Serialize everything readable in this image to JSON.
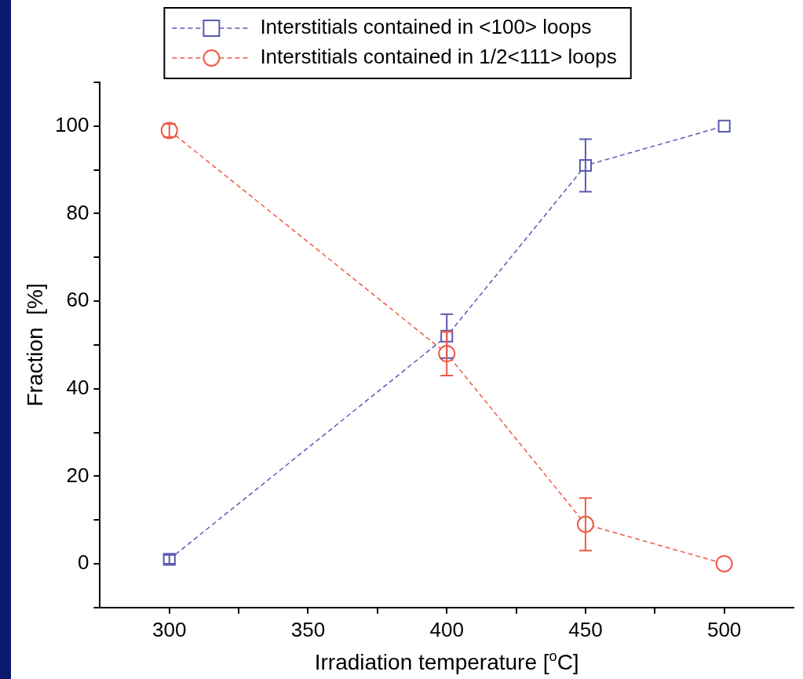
{
  "chart_data": {
    "type": "line",
    "xlabel": "Irradiation temperature [$^{o}$C]",
    "ylabel": "Fraction  [%]",
    "x": [
      300,
      400,
      450,
      500
    ],
    "series": [
      {
        "name": "Interstitials contained in <100> loops",
        "color": "#5a5ab4",
        "marker": "square",
        "line_style": "dashed",
        "values": [
          1,
          52,
          91,
          100
        ],
        "errors": [
          1,
          5,
          6,
          null
        ]
      },
      {
        "name": "Interstitials contained in 1/2<111> loops",
        "color": "#f05a46",
        "marker": "circle",
        "line_style": "dashed",
        "values": [
          99,
          48,
          9,
          0
        ],
        "errors": [
          1.5,
          5,
          6,
          null
        ]
      }
    ],
    "xlim": [
      275,
      525
    ],
    "xticks": [
      300,
      {
        "value": 325,
        "label": null
      },
      350,
      {
        "value": 375,
        "label": null
      },
      400,
      {
        "value": 425,
        "label": null
      },
      450,
      {
        "value": 475,
        "label": null
      },
      500
    ],
    "ylim": [
      -10,
      110
    ],
    "yticks": [
      {
        "value": -10,
        "label": null
      },
      0,
      {
        "value": 10,
        "label": null
      },
      20,
      {
        "value": 30,
        "label": null
      },
      40,
      {
        "value": 50,
        "label": null
      },
      60,
      {
        "value": 70,
        "label": null
      },
      80,
      {
        "value": 90,
        "label": null
      },
      100,
      {
        "value": 110,
        "label": null
      }
    ],
    "grid": false,
    "legend": "top"
  }
}
